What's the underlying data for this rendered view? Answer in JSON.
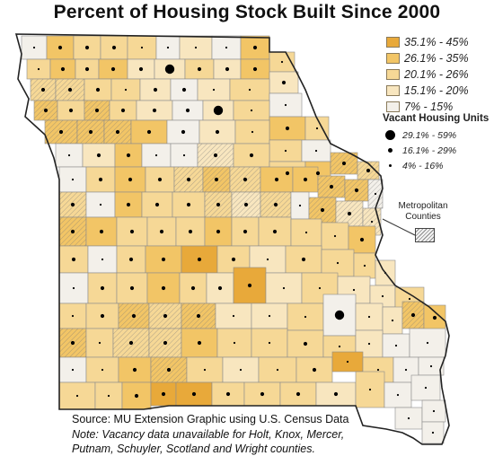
{
  "title": "Percent of Housing Stock Built Since 2000",
  "legend": {
    "classes": [
      {
        "label": "35.1% - 45%",
        "color": "#e8a93a"
      },
      {
        "label": "26.1% - 35%",
        "color": "#f2c566"
      },
      {
        "label": "20.1% - 26%",
        "color": "#f6d896"
      },
      {
        "label": "15.1% - 20%",
        "color": "#f8e6bf"
      },
      {
        "label": "7% - 15%",
        "color": "#f3f0ea"
      }
    ],
    "vacant_title": "Vacant Housing Units",
    "vacant_classes": [
      {
        "label": "29.1% - 59%",
        "size": "large"
      },
      {
        "label": "16.1% - 29%",
        "size": "medium"
      },
      {
        "label": "4% - 16%",
        "size": "small"
      }
    ],
    "metro_label": "Metropolitan Counties"
  },
  "source": "Source: MU Extension Graphic using U.S. Census Data",
  "note": "Note: Vacancy data unavailable for Holt, Knox, Mercer, Putnam, Schuyler, Scotland and Wright counties.",
  "colors": {
    "border": "#8c8c8c",
    "state_outline": "#222222",
    "metro_hatch": "#777777"
  }
}
